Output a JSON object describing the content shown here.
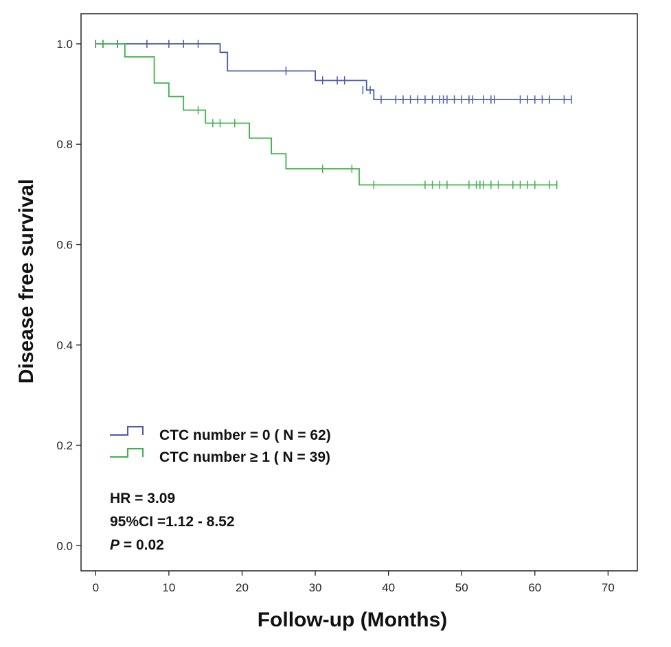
{
  "chart_data": {
    "type": "line",
    "subtype": "kaplan-meier-step",
    "title": "",
    "xlabel": "Follow-up (Months)",
    "ylabel": "Disease free survival",
    "xlim": [
      -2,
      74
    ],
    "ylim": [
      -0.05,
      1.06
    ],
    "xticks": [
      0,
      10,
      20,
      30,
      40,
      50,
      60,
      70
    ],
    "xtick_labels": [
      "0",
      "10",
      "20",
      "30",
      "40",
      "50",
      "60",
      "70"
    ],
    "yticks": [
      0.0,
      0.2,
      0.4,
      0.6,
      0.8,
      1.0
    ],
    "ytick_labels": [
      "0.0",
      "0.2",
      "0.4",
      "0.6",
      "0.8",
      "1.0"
    ],
    "grid": false,
    "legend_position": "bottom-left",
    "series": [
      {
        "name": "CTC number = 0 ( N = 62)",
        "color": "#4a5bad",
        "steps": [
          [
            0,
            1.0
          ],
          [
            17,
            1.0
          ],
          [
            17,
            0.983
          ],
          [
            18,
            0.983
          ],
          [
            18,
            0.946
          ],
          [
            30,
            0.946
          ],
          [
            30,
            0.927
          ],
          [
            37,
            0.927
          ],
          [
            37,
            0.908
          ],
          [
            38,
            0.908
          ],
          [
            38,
            0.889
          ],
          [
            65,
            0.889
          ]
        ],
        "censored": [
          [
            0,
            1.0
          ],
          [
            1,
            1.0
          ],
          [
            3,
            1.0
          ],
          [
            7,
            1.0
          ],
          [
            10,
            1.0
          ],
          [
            12,
            1.0
          ],
          [
            14,
            1.0
          ],
          [
            26,
            0.946
          ],
          [
            31,
            0.927
          ],
          [
            33,
            0.927
          ],
          [
            34,
            0.927
          ],
          [
            36.5,
            0.908
          ],
          [
            37.5,
            0.908
          ],
          [
            39,
            0.889
          ],
          [
            41,
            0.889
          ],
          [
            42,
            0.889
          ],
          [
            43,
            0.889
          ],
          [
            44,
            0.889
          ],
          [
            45,
            0.889
          ],
          [
            46,
            0.889
          ],
          [
            47,
            0.889
          ],
          [
            47.5,
            0.889
          ],
          [
            48,
            0.889
          ],
          [
            49,
            0.889
          ],
          [
            50,
            0.889
          ],
          [
            51,
            0.889
          ],
          [
            51.5,
            0.889
          ],
          [
            53,
            0.889
          ],
          [
            54,
            0.889
          ],
          [
            54.5,
            0.889
          ],
          [
            58,
            0.889
          ],
          [
            59,
            0.889
          ],
          [
            60,
            0.889
          ],
          [
            61,
            0.889
          ],
          [
            62,
            0.889
          ],
          [
            64,
            0.889
          ],
          [
            65,
            0.889
          ]
        ]
      },
      {
        "name": "CTC number ≥ 1 ( N = 39)",
        "color": "#3cb44b",
        "steps": [
          [
            0,
            1.0
          ],
          [
            4,
            1.0
          ],
          [
            4,
            0.974
          ],
          [
            8,
            0.974
          ],
          [
            8,
            0.922
          ],
          [
            10,
            0.922
          ],
          [
            10,
            0.895
          ],
          [
            12,
            0.895
          ],
          [
            12,
            0.868
          ],
          [
            15,
            0.868
          ],
          [
            15,
            0.842
          ],
          [
            21,
            0.842
          ],
          [
            21,
            0.812
          ],
          [
            24,
            0.812
          ],
          [
            24,
            0.781
          ],
          [
            26,
            0.781
          ],
          [
            26,
            0.751
          ],
          [
            36,
            0.751
          ],
          [
            36,
            0.719
          ],
          [
            63,
            0.719
          ]
        ],
        "censored": [
          [
            1,
            1.0
          ],
          [
            14,
            0.868
          ],
          [
            16,
            0.842
          ],
          [
            17,
            0.842
          ],
          [
            19,
            0.842
          ],
          [
            31,
            0.751
          ],
          [
            35,
            0.751
          ],
          [
            38,
            0.719
          ],
          [
            45,
            0.719
          ],
          [
            46,
            0.719
          ],
          [
            47,
            0.719
          ],
          [
            48,
            0.719
          ],
          [
            51,
            0.719
          ],
          [
            52,
            0.719
          ],
          [
            52.5,
            0.719
          ],
          [
            53,
            0.719
          ],
          [
            54,
            0.719
          ],
          [
            55,
            0.719
          ],
          [
            57,
            0.719
          ],
          [
            58,
            0.719
          ],
          [
            59,
            0.719
          ],
          [
            60,
            0.719
          ],
          [
            62,
            0.719
          ],
          [
            63,
            0.719
          ]
        ]
      }
    ],
    "annotations": {
      "hr": "HR = 3.09",
      "ci": "95%CI =1.12 - 8.52",
      "p_italic": "P",
      "p_rest": " = 0.02"
    }
  }
}
